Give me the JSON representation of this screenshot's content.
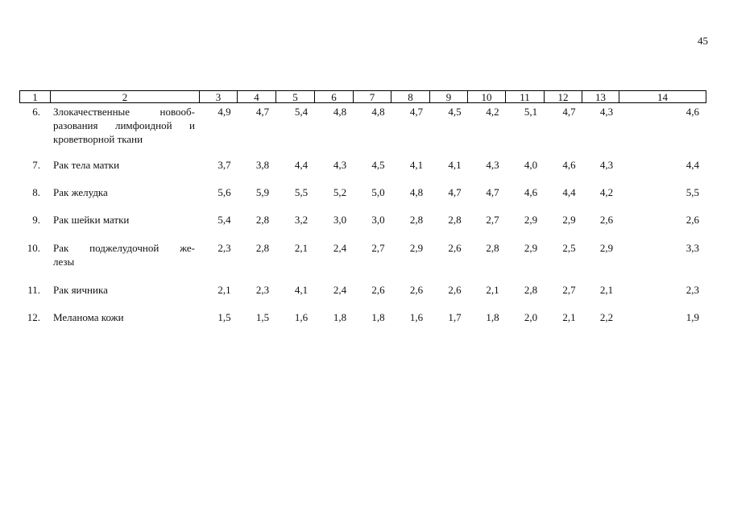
{
  "page_number": "45",
  "table": {
    "header": [
      "1",
      "2",
      "3",
      "4",
      "5",
      "6",
      "7",
      "8",
      "9",
      "10",
      "11",
      "12",
      "13",
      "14"
    ],
    "rows": [
      {
        "number": "6.",
        "name": [
          "Злокачественные новооб-",
          "разования лимфоидной и",
          "кроветворной ткани"
        ],
        "values": [
          "4,9",
          "4,7",
          "5,4",
          "4,8",
          "4,8",
          "4,7",
          "4,5",
          "4,2",
          "5,1",
          "4,7",
          "4,3",
          "4,6"
        ]
      },
      {
        "number": "7.",
        "name": [
          "Рак тела матки"
        ],
        "values": [
          "3,7",
          "3,8",
          "4,4",
          "4,3",
          "4,5",
          "4,1",
          "4,1",
          "4,3",
          "4,0",
          "4,6",
          "4,3",
          "4,4"
        ]
      },
      {
        "number": "8.",
        "name": [
          "Рак желудка"
        ],
        "values": [
          "5,6",
          "5,9",
          "5,5",
          "5,2",
          "5,0",
          "4,8",
          "4,7",
          "4,7",
          "4,6",
          "4,4",
          "4,2",
          "5,5"
        ]
      },
      {
        "number": "9.",
        "name": [
          "Рак шейки матки"
        ],
        "values": [
          "5,4",
          "2,8",
          "3,2",
          "3,0",
          "3,0",
          "2,8",
          "2,8",
          "2,7",
          "2,9",
          "2,9",
          "2,6",
          "2,6"
        ]
      },
      {
        "number": "10.",
        "name": [
          "Рак поджелудочной же-",
          "лезы"
        ],
        "values": [
          "2,3",
          "2,8",
          "2,1",
          "2,4",
          "2,7",
          "2,9",
          "2,6",
          "2,8",
          "2,9",
          "2,5",
          "2,9",
          "3,3"
        ]
      },
      {
        "number": "11.",
        "name": [
          "Рак яичника"
        ],
        "values": [
          "2,1",
          "2,3",
          "4,1",
          "2,4",
          "2,6",
          "2,6",
          "2,6",
          "2,1",
          "2,8",
          "2,7",
          "2,1",
          "2,3"
        ]
      },
      {
        "number": "12.",
        "name": [
          "Меланома кожи"
        ],
        "values": [
          "1,5",
          "1,5",
          "1,6",
          "1,8",
          "1,8",
          "1,6",
          "1,7",
          "1,8",
          "2,0",
          "2,1",
          "2,2",
          "1,9"
        ]
      }
    ]
  }
}
